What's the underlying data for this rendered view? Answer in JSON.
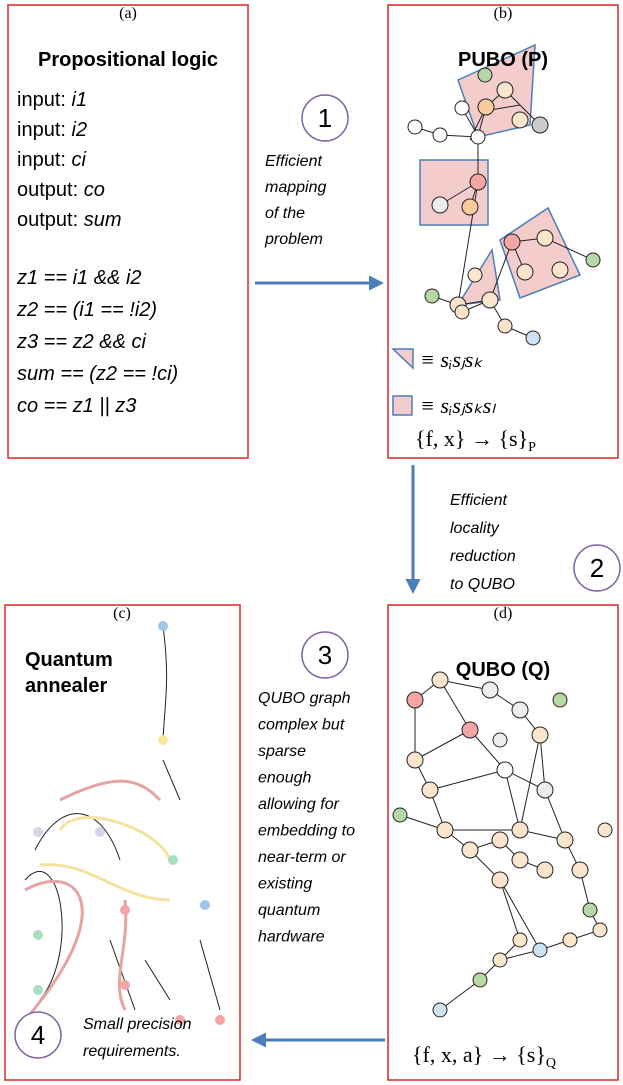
{
  "panels": [
    {
      "label": "(a)",
      "title": "Propositional logic",
      "io": [
        {
          "key": "input:",
          "var": "i1"
        },
        {
          "key": "input:",
          "var": "i2"
        },
        {
          "key": "input:",
          "var": "ci"
        },
        {
          "key": "output:",
          "var": "co"
        },
        {
          "key": "output:",
          "var": "sum"
        }
      ],
      "logic": [
        "z1 == i1 && i2",
        "z2 == (i1 == !i2)",
        "z3 == z2 && ci",
        "sum == (z2 == !ci)",
        "co == z1 || z3"
      ]
    },
    {
      "label": "(b)",
      "title": "PUBO (P)",
      "legend": [
        "≡ sᵢsⱼsₖ",
        "≡ sᵢsⱼsₖsₗ"
      ],
      "formula": {
        "main": "{f, x} → {s}",
        "sub": "P"
      }
    },
    {
      "label": "(c)",
      "title": [
        "Quantum",
        "annealer"
      ]
    },
    {
      "label": "(d)",
      "title": "QUBO (Q)",
      "formula": {
        "main": "{f, x, a} → {s}",
        "sub": "Q"
      }
    }
  ],
  "steps": [
    {
      "number": "1",
      "lines": [
        "Efficient",
        "mapping",
        "of the",
        "problem"
      ]
    },
    {
      "number": "2",
      "lines": [
        "Efficient",
        "locality",
        "reduction",
        "to QUBO"
      ]
    },
    {
      "number": "3",
      "lines": [
        "QUBO graph",
        "complex but",
        "sparse",
        "enough",
        "allowing for",
        "embedding to",
        "near-term or",
        "existing",
        "quantum",
        "hardware"
      ]
    },
    {
      "number": "4",
      "lines": [
        "Small precision",
        "requirements."
      ]
    }
  ]
}
